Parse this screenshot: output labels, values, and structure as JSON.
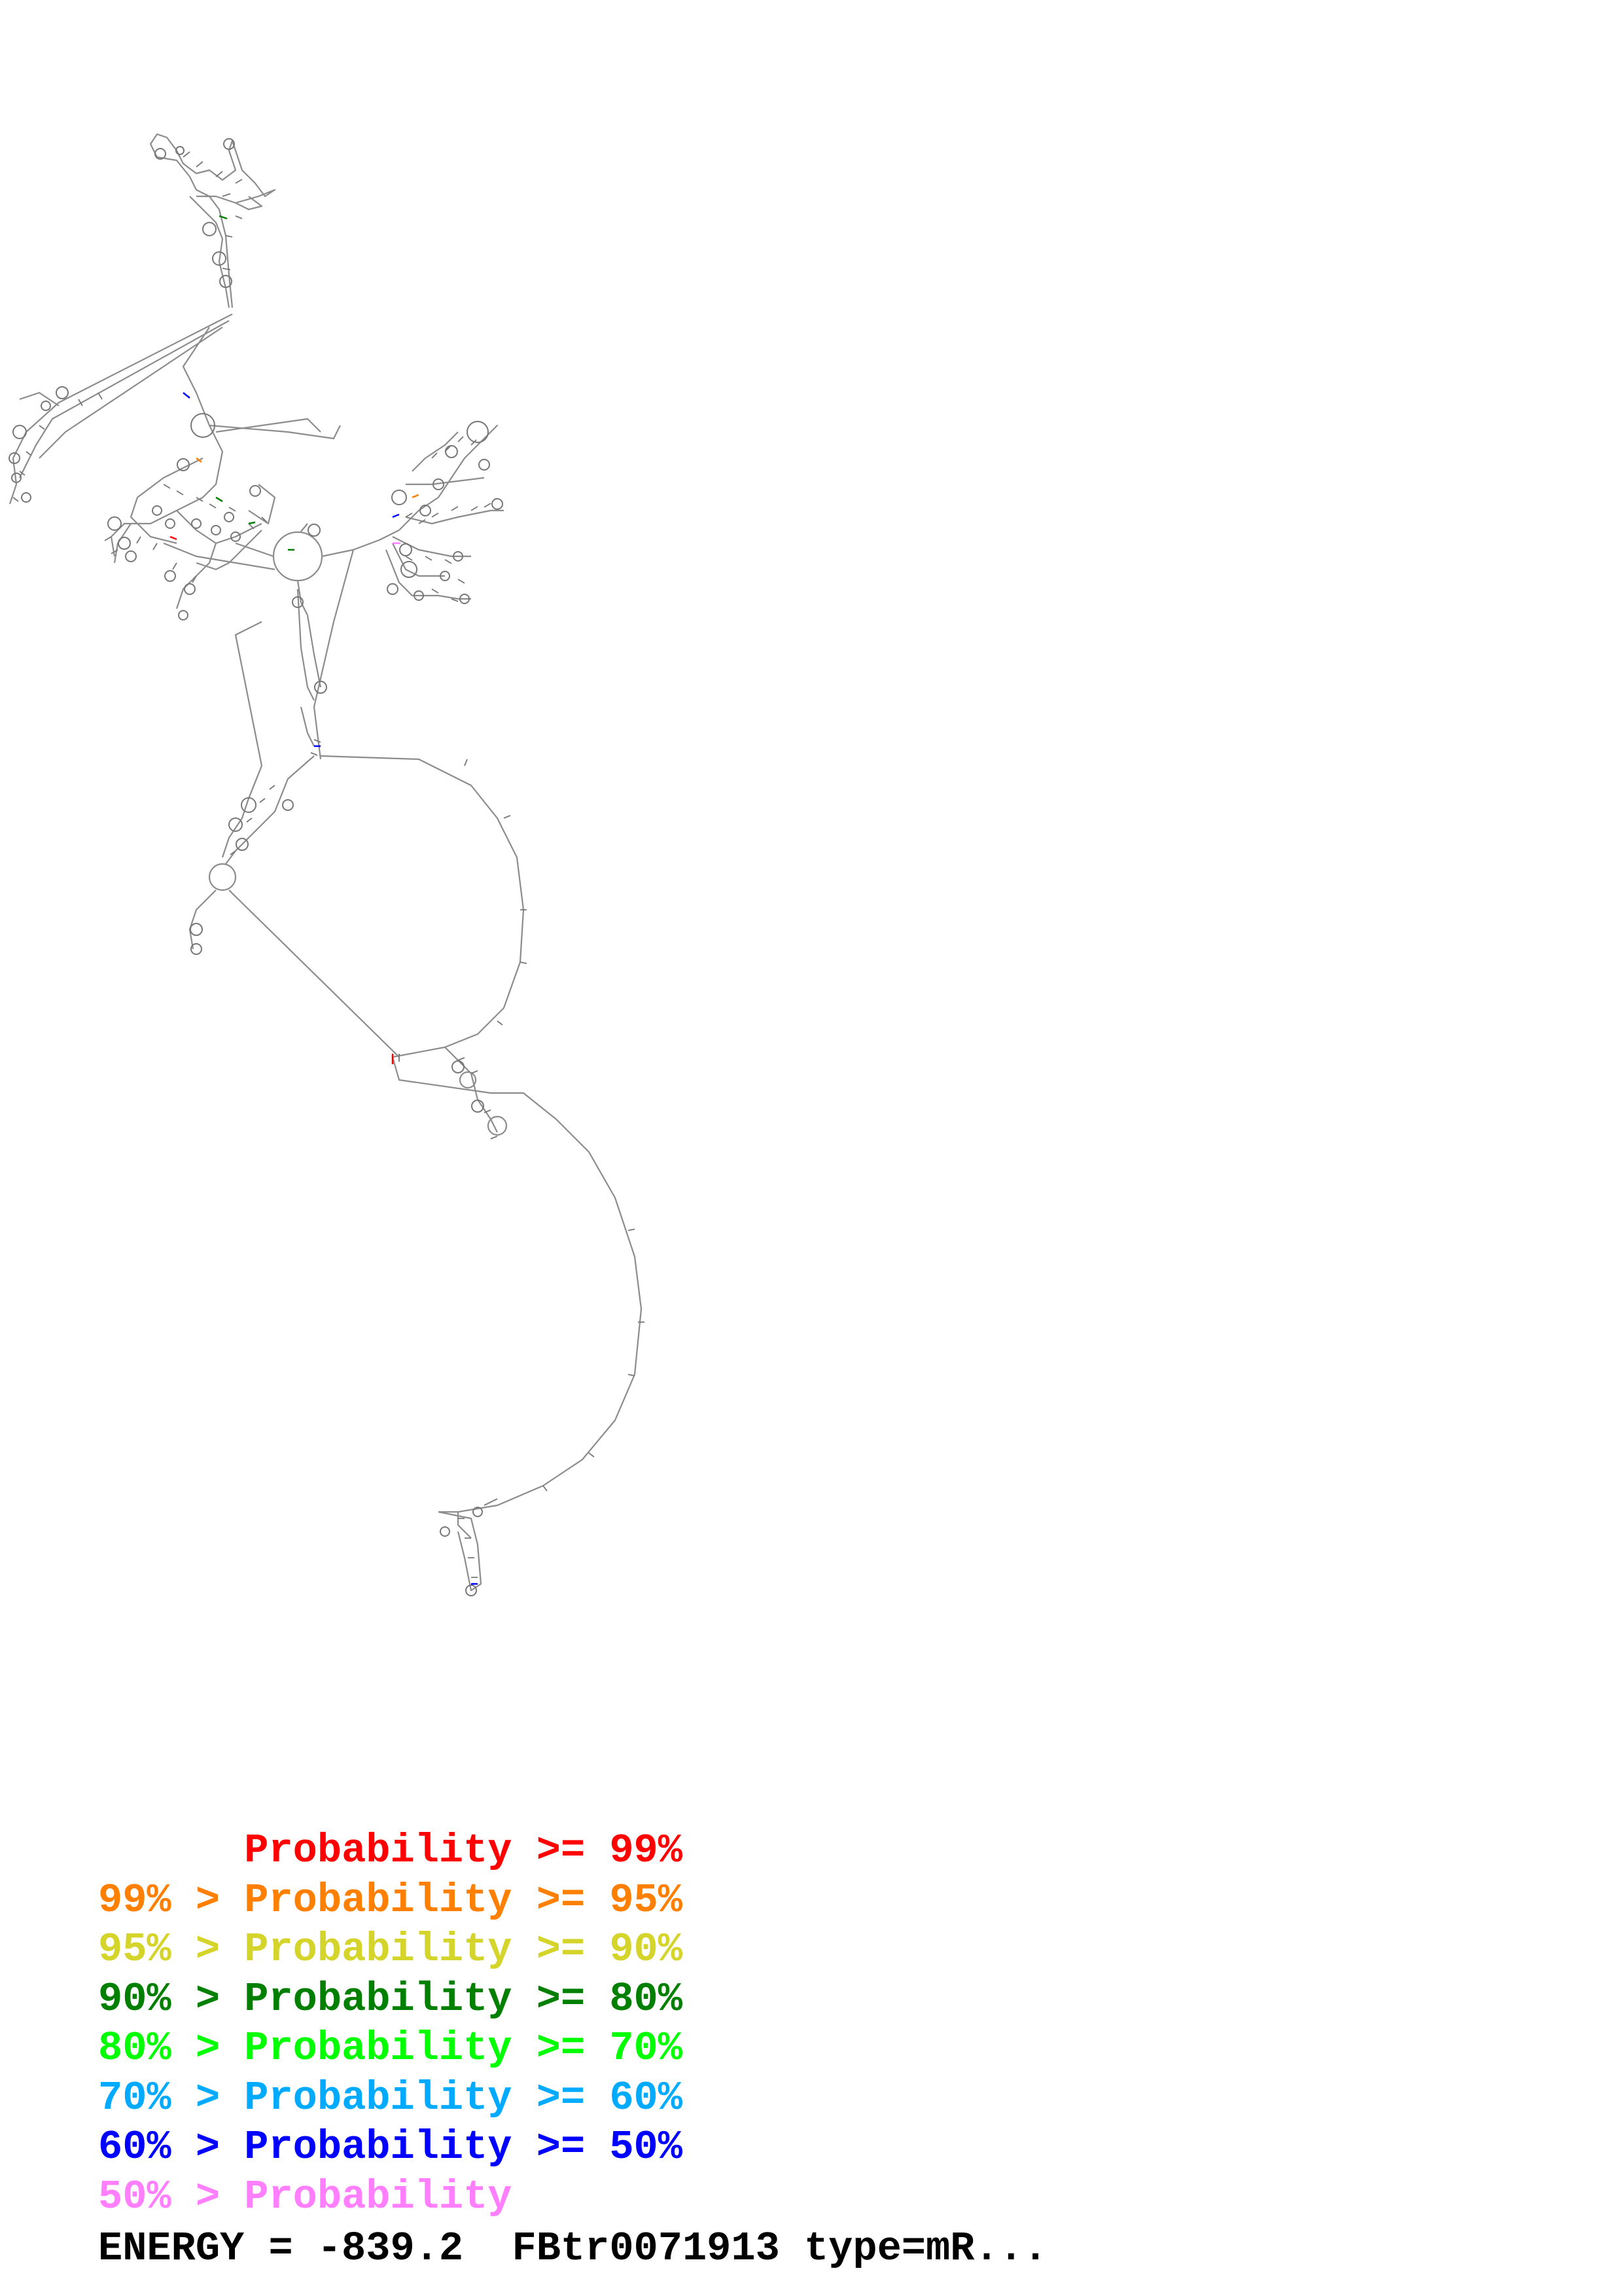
{
  "legend": [
    {
      "lower": "",
      "sep": "",
      "label": "Probability",
      "cond": ">= 99%",
      "color": "#ff0000"
    },
    {
      "lower": "99%",
      "sep": ">",
      "label": "Probability",
      "cond": ">= 95%",
      "color": "#ff7f00"
    },
    {
      "lower": "95%",
      "sep": ">",
      "label": "Probability",
      "cond": ">= 90%",
      "color": "#d4d42a"
    },
    {
      "lower": "90%",
      "sep": ">",
      "label": "Probability",
      "cond": ">= 80%",
      "color": "#007f00"
    },
    {
      "lower": "80%",
      "sep": ">",
      "label": "Probability",
      "cond": ">= 70%",
      "color": "#00ff00"
    },
    {
      "lower": "70%",
      "sep": ">",
      "label": "Probability",
      "cond": ">= 60%",
      "color": "#00aaff"
    },
    {
      "lower": "60%",
      "sep": ">",
      "label": "Probability",
      "cond": ">= 50%",
      "color": "#0000ff"
    },
    {
      "lower": "50%",
      "sep": ">",
      "label": "Probability",
      "cond": "",
      "color": "#ff7fff"
    }
  ],
  "energy_text": "ENERGY = -839.2  FBtr0071913 type=mR...",
  "colors": {
    "backbone": "#8c8c8c",
    "pair": "#777777"
  }
}
